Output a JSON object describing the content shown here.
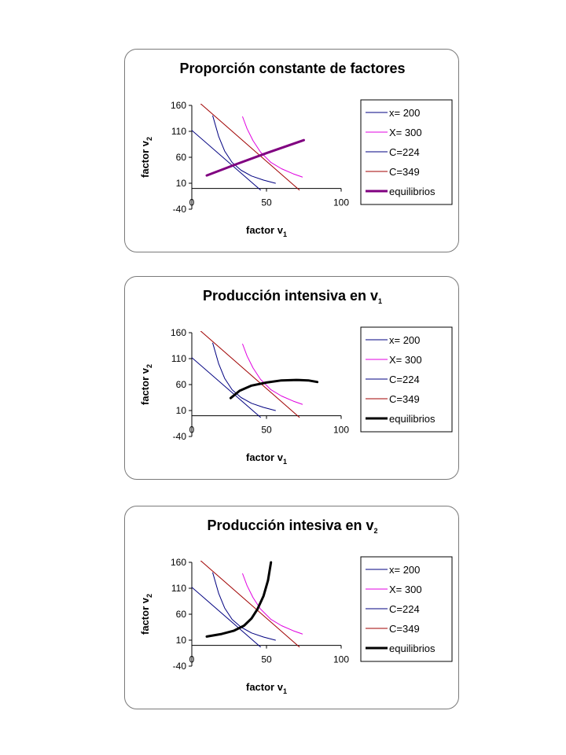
{
  "chart_data": [
    {
      "type": "line",
      "title": "Proporción constante de factores",
      "xlabel": "factor v",
      "xlabel_sub": "1",
      "ylabel": "factor v",
      "ylabel_sub": "2",
      "xlim": [
        0,
        100
      ],
      "ylim": [
        -40,
        160
      ],
      "xticks": [
        "0",
        "50",
        "100"
      ],
      "yticks": [
        "160",
        "110",
        "60",
        "10",
        "-40"
      ],
      "grid": false,
      "legend": "right",
      "series": [
        {
          "name": "x= 200",
          "color": "#000080",
          "width": 1,
          "x": [
            14,
            18,
            22,
            27,
            33,
            40,
            48,
            56
          ],
          "y": [
            140,
            100,
            72,
            50,
            35,
            24,
            16,
            10
          ]
        },
        {
          "name": "X= 300",
          "color": "#e000e0",
          "width": 1,
          "x": [
            34,
            37,
            41,
            46,
            53,
            60,
            68,
            74
          ],
          "y": [
            138,
            115,
            92,
            70,
            50,
            38,
            28,
            22
          ]
        },
        {
          "name": "C=224",
          "color": "#000080",
          "width": 1,
          "x": [
            0,
            46
          ],
          "y": [
            112,
            -3
          ]
        },
        {
          "name": "C=349",
          "color": "#a00000",
          "width": 1,
          "x": [
            4,
            72
          ],
          "y": [
            168,
            -3
          ]
        },
        {
          "name": "equilibrios",
          "color": "#800080",
          "width": 3,
          "x": [
            10,
            30,
            50,
            75
          ],
          "y": [
            25,
            47,
            68,
            93
          ]
        }
      ]
    },
    {
      "type": "line",
      "title": "Producción intensiva en v",
      "title_sub": "1",
      "xlabel": "factor v",
      "xlabel_sub": "1",
      "ylabel": "factor v",
      "ylabel_sub": "2",
      "xlim": [
        0,
        100
      ],
      "ylim": [
        -40,
        160
      ],
      "xticks": [
        "0",
        "50",
        "100"
      ],
      "yticks": [
        "160",
        "110",
        "60",
        "10",
        "-40"
      ],
      "grid": false,
      "legend": "right",
      "series": [
        {
          "name": "x= 200",
          "color": "#000080",
          "width": 1,
          "x": [
            14,
            18,
            22,
            27,
            33,
            40,
            48,
            56
          ],
          "y": [
            140,
            100,
            72,
            50,
            35,
            24,
            16,
            10
          ]
        },
        {
          "name": "X= 300",
          "color": "#e000e0",
          "width": 1,
          "x": [
            34,
            37,
            41,
            46,
            53,
            60,
            68,
            74
          ],
          "y": [
            138,
            115,
            92,
            70,
            50,
            38,
            28,
            22
          ]
        },
        {
          "name": "C=224",
          "color": "#000080",
          "width": 1,
          "x": [
            0,
            46
          ],
          "y": [
            112,
            -3
          ]
        },
        {
          "name": "C=349",
          "color": "#a00000",
          "width": 1,
          "x": [
            4,
            72
          ],
          "y": [
            168,
            -3
          ]
        },
        {
          "name": "equilibrios",
          "color": "#000000",
          "width": 3,
          "x": [
            26,
            32,
            40,
            50,
            60,
            70,
            78,
            84
          ],
          "y": [
            34,
            48,
            58,
            64,
            68,
            69,
            68,
            65
          ]
        }
      ]
    },
    {
      "type": "line",
      "title": "Producción intesiva en v",
      "title_sub": "2",
      "xlabel": "factor v",
      "xlabel_sub": "1",
      "ylabel": "factor v",
      "ylabel_sub": "2",
      "xlim": [
        0,
        100
      ],
      "ylim": [
        -40,
        160
      ],
      "xticks": [
        "0",
        "50",
        "100"
      ],
      "yticks": [
        "160",
        "110",
        "60",
        "10",
        "-40"
      ],
      "grid": false,
      "legend": "right",
      "series": [
        {
          "name": "x= 200",
          "color": "#000080",
          "width": 1,
          "x": [
            14,
            18,
            22,
            27,
            33,
            40,
            48,
            56
          ],
          "y": [
            140,
            100,
            72,
            50,
            35,
            24,
            16,
            10
          ]
        },
        {
          "name": "X= 300",
          "color": "#e000e0",
          "width": 1,
          "x": [
            34,
            37,
            41,
            46,
            53,
            60,
            68,
            74
          ],
          "y": [
            138,
            115,
            92,
            70,
            50,
            38,
            28,
            22
          ]
        },
        {
          "name": "C=224",
          "color": "#000080",
          "width": 1,
          "x": [
            0,
            46
          ],
          "y": [
            112,
            -3
          ]
        },
        {
          "name": "C=349",
          "color": "#a00000",
          "width": 1,
          "x": [
            4,
            72
          ],
          "y": [
            168,
            -3
          ]
        },
        {
          "name": "equilibrios",
          "color": "#000000",
          "width": 3,
          "x": [
            10,
            20,
            28,
            35,
            40,
            44,
            48,
            51,
            53
          ],
          "y": [
            17,
            22,
            28,
            38,
            52,
            70,
            95,
            125,
            160
          ]
        }
      ]
    }
  ]
}
